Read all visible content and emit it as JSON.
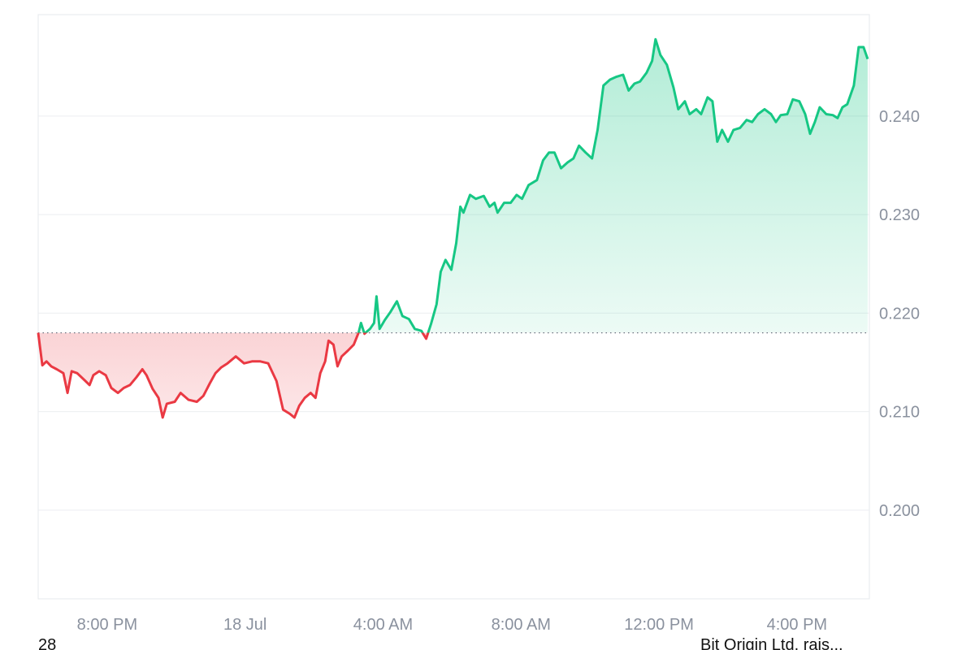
{
  "chart_data": {
    "type": "line",
    "x": [
      18.0,
      18.12,
      18.24,
      18.38,
      18.54,
      18.73,
      18.85,
      18.97,
      19.13,
      19.37,
      19.49,
      19.6,
      19.77,
      19.96,
      20.12,
      20.31,
      20.48,
      20.66,
      20.85,
      21.02,
      21.14,
      21.32,
      21.49,
      21.61,
      21.73,
      21.96,
      22.13,
      22.36,
      22.6,
      22.79,
      22.98,
      23.14,
      23.31,
      23.49,
      23.73,
      23.97,
      24.2,
      24.44,
      24.67,
      24.91,
      25.1,
      25.29,
      25.43,
      25.57,
      25.73,
      25.9,
      26.04,
      26.18,
      26.32,
      26.42,
      26.56,
      26.68,
      26.8,
      26.98,
      27.15,
      27.29,
      27.36,
      27.46,
      27.62,
      27.74,
      27.81,
      27.9,
      28.05,
      28.21,
      28.4,
      28.56,
      28.75,
      28.92,
      29.11,
      29.25,
      29.39,
      29.55,
      29.67,
      29.81,
      29.98,
      30.12,
      30.24,
      30.33,
      30.52,
      30.69,
      30.92,
      31.09,
      31.23,
      31.32,
      31.51,
      31.7,
      31.87,
      32.03,
      32.22,
      32.46,
      32.64,
      32.81,
      32.97,
      33.16,
      33.35,
      33.52,
      33.68,
      33.87,
      34.06,
      34.22,
      34.39,
      34.58,
      34.77,
      34.96,
      35.12,
      35.29,
      35.45,
      35.64,
      35.8,
      35.9,
      36.04,
      36.23,
      36.42,
      36.56,
      36.75,
      36.89,
      37.08,
      37.22,
      37.41,
      37.55,
      37.69,
      37.83,
      38.0,
      38.16,
      38.35,
      38.54,
      38.7,
      38.87,
      39.06,
      39.25,
      39.39,
      39.53,
      39.72,
      39.88,
      40.07,
      40.24,
      40.38,
      40.52,
      40.66,
      40.85,
      41.04,
      41.18,
      41.32,
      41.46,
      41.65,
      41.79,
      41.93,
      42.05
    ],
    "values": [
      0.218,
      0.2147,
      0.2151,
      0.2146,
      0.2143,
      0.2139,
      0.2119,
      0.2141,
      0.2139,
      0.2131,
      0.2127,
      0.2137,
      0.2141,
      0.2137,
      0.2124,
      0.2119,
      0.2124,
      0.2127,
      0.2135,
      0.2143,
      0.2137,
      0.2123,
      0.2114,
      0.2094,
      0.2108,
      0.211,
      0.2119,
      0.2112,
      0.211,
      0.2116,
      0.2129,
      0.2139,
      0.2145,
      0.2149,
      0.2156,
      0.2149,
      0.2151,
      0.2151,
      0.2149,
      0.2131,
      0.2102,
      0.2098,
      0.2094,
      0.2106,
      0.2114,
      0.2119,
      0.2114,
      0.2139,
      0.2151,
      0.2172,
      0.2168,
      0.2146,
      0.2156,
      0.2162,
      0.2168,
      0.218,
      0.219,
      0.2179,
      0.2184,
      0.219,
      0.2217,
      0.2184,
      0.2193,
      0.2201,
      0.2212,
      0.2197,
      0.2194,
      0.2184,
      0.2182,
      0.2174,
      0.2189,
      0.2209,
      0.2242,
      0.2254,
      0.2244,
      0.2271,
      0.2308,
      0.2302,
      0.232,
      0.2316,
      0.2319,
      0.2308,
      0.2312,
      0.2302,
      0.2312,
      0.2312,
      0.232,
      0.2316,
      0.233,
      0.2335,
      0.2355,
      0.2363,
      0.2363,
      0.2347,
      0.2353,
      0.2357,
      0.237,
      0.2363,
      0.2357,
      0.2386,
      0.2431,
      0.2437,
      0.244,
      0.2442,
      0.2426,
      0.2433,
      0.2435,
      0.2444,
      0.2456,
      0.2478,
      0.2462,
      0.2452,
      0.2429,
      0.2407,
      0.2415,
      0.2402,
      0.2407,
      0.2402,
      0.2419,
      0.2415,
      0.2374,
      0.2386,
      0.2374,
      0.2386,
      0.2388,
      0.2396,
      0.2394,
      0.2402,
      0.2407,
      0.2402,
      0.2394,
      0.2401,
      0.2402,
      0.2417,
      0.2415,
      0.2402,
      0.2382,
      0.2394,
      0.2409,
      0.2402,
      0.2401,
      0.2398,
      0.2409,
      0.2412,
      0.2431,
      0.247,
      0.247,
      0.2458
    ],
    "baseline": 0.218,
    "up_color": "#16c784",
    "down_color": "#ea3943",
    "xlim": [
      18,
      42.1
    ],
    "ylim": [
      0.191,
      0.2503
    ],
    "xticks": [
      {
        "value": 20,
        "label": "8:00 PM"
      },
      {
        "value": 24,
        "label": "18 Jul"
      },
      {
        "value": 28,
        "label": "4:00 AM"
      },
      {
        "value": 32,
        "label": "8:00 AM"
      },
      {
        "value": 36,
        "label": "12:00 PM"
      },
      {
        "value": 40,
        "label": "4:00 PM"
      }
    ],
    "yticks": [
      {
        "value": 0.2,
        "label": "0.200"
      },
      {
        "value": 0.21,
        "label": "0.210"
      },
      {
        "value": 0.22,
        "label": "0.220"
      },
      {
        "value": 0.23,
        "label": "0.230"
      },
      {
        "value": 0.24,
        "label": "0.240"
      }
    ],
    "grid": true
  },
  "footer": {
    "left": "28",
    "right": "Bit Origin Ltd. rais..."
  }
}
